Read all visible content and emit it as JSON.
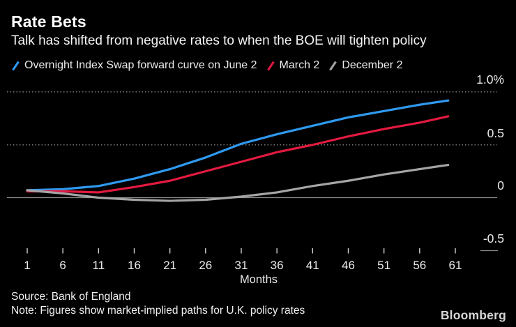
{
  "header": {
    "title": "Rate Bets",
    "subtitle": "Talk has shifted from negative rates to when the BOE will tighten policy"
  },
  "legend": {
    "items": [
      {
        "label": "Overnight Index Swap forward curve on June 2",
        "color": "#2f9af0"
      },
      {
        "label": "March 2",
        "color": "#e21a3f"
      },
      {
        "label": "December 2",
        "color": "#a5a5a5"
      }
    ]
  },
  "chart_data": {
    "type": "line",
    "title": "Rate Bets",
    "subtitle": "Talk has shifted from negative rates to when the BOE will tighten policy",
    "xlabel": "Months",
    "unit": "%",
    "ylim": [
      -0.5,
      1.0
    ],
    "xlim": [
      1,
      61
    ],
    "grid": "dotted horizontal lines at 0.5 and 1.0, solid line at 0, axis row at -0.5",
    "legend_position": "top-left",
    "background": "#000000",
    "x_ticks": [
      1,
      6,
      11,
      16,
      21,
      26,
      31,
      36,
      41,
      46,
      51,
      56,
      61
    ],
    "y_tick_labels": [
      "1.0%",
      "0.5",
      "0",
      "-0.5"
    ],
    "y_tick_values": [
      1.0,
      0.5,
      0,
      -0.5
    ],
    "months": [
      1,
      6,
      11,
      16,
      21,
      26,
      31,
      36,
      41,
      46,
      51,
      56,
      60
    ],
    "series": [
      {
        "name": "Overnight Index Swap forward curve on June 2",
        "color": "#2f9af0",
        "values": [
          0.07,
          0.08,
          0.11,
          0.18,
          0.27,
          0.38,
          0.51,
          0.6,
          0.68,
          0.76,
          0.82,
          0.88,
          0.92
        ]
      },
      {
        "name": "March 2",
        "color": "#e21a3f",
        "values": [
          0.06,
          0.06,
          0.05,
          0.1,
          0.16,
          0.25,
          0.34,
          0.43,
          0.5,
          0.58,
          0.65,
          0.71,
          0.77
        ]
      },
      {
        "name": "December 2",
        "color": "#a5a5a5",
        "values": [
          0.07,
          0.04,
          0.0,
          -0.02,
          -0.03,
          -0.02,
          0.01,
          0.05,
          0.11,
          0.16,
          0.22,
          0.27,
          0.31
        ]
      }
    ]
  },
  "axis": {
    "months_label": "Months"
  },
  "footer": {
    "source": "Source: Bank of England",
    "note": "Note: Figures show market-implied paths for U.K. policy rates",
    "brand": "Bloomberg"
  }
}
